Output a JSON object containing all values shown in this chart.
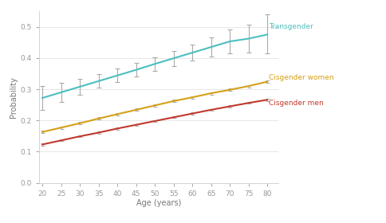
{
  "ages": [
    20,
    25,
    30,
    35,
    40,
    45,
    50,
    55,
    60,
    65,
    70,
    75,
    80
  ],
  "transgender": {
    "y": [
      0.272,
      0.29,
      0.308,
      0.326,
      0.344,
      0.362,
      0.381,
      0.399,
      0.417,
      0.435,
      0.453,
      0.462,
      0.475
    ],
    "yerr_low": [
      0.038,
      0.03,
      0.025,
      0.022,
      0.022,
      0.022,
      0.022,
      0.024,
      0.026,
      0.03,
      0.038,
      0.045,
      0.06
    ],
    "yerr_high": [
      0.038,
      0.03,
      0.025,
      0.022,
      0.022,
      0.022,
      0.022,
      0.024,
      0.026,
      0.03,
      0.038,
      0.045,
      0.065
    ],
    "color": "#4DBFBF",
    "label": "Transgender"
  },
  "cisgender_women": {
    "y": [
      0.163,
      0.177,
      0.191,
      0.206,
      0.22,
      0.234,
      0.248,
      0.262,
      0.274,
      0.287,
      0.298,
      0.31,
      0.324
    ],
    "yerr": 0.004,
    "color": "#D4A017",
    "label": "Cisgender women"
  },
  "cisgender_men": {
    "y": [
      0.123,
      0.136,
      0.149,
      0.161,
      0.174,
      0.186,
      0.198,
      0.21,
      0.222,
      0.234,
      0.245,
      0.256,
      0.266
    ],
    "yerr": 0.003,
    "color": "#C0392B",
    "label": "Cisgender men"
  },
  "xlabel": "Age (years)",
  "ylabel": "Probability",
  "ylim": [
    0.0,
    0.55
  ],
  "xlim": [
    19,
    83
  ],
  "yticks": [
    0.0,
    0.1,
    0.2,
    0.3,
    0.4,
    0.5
  ],
  "xticks": [
    20,
    25,
    30,
    35,
    40,
    45,
    50,
    55,
    60,
    65,
    70,
    75,
    80
  ],
  "background_color": "#ffffff",
  "errorbar_color": "#aaaaaa",
  "grid_color": "#dddddd"
}
